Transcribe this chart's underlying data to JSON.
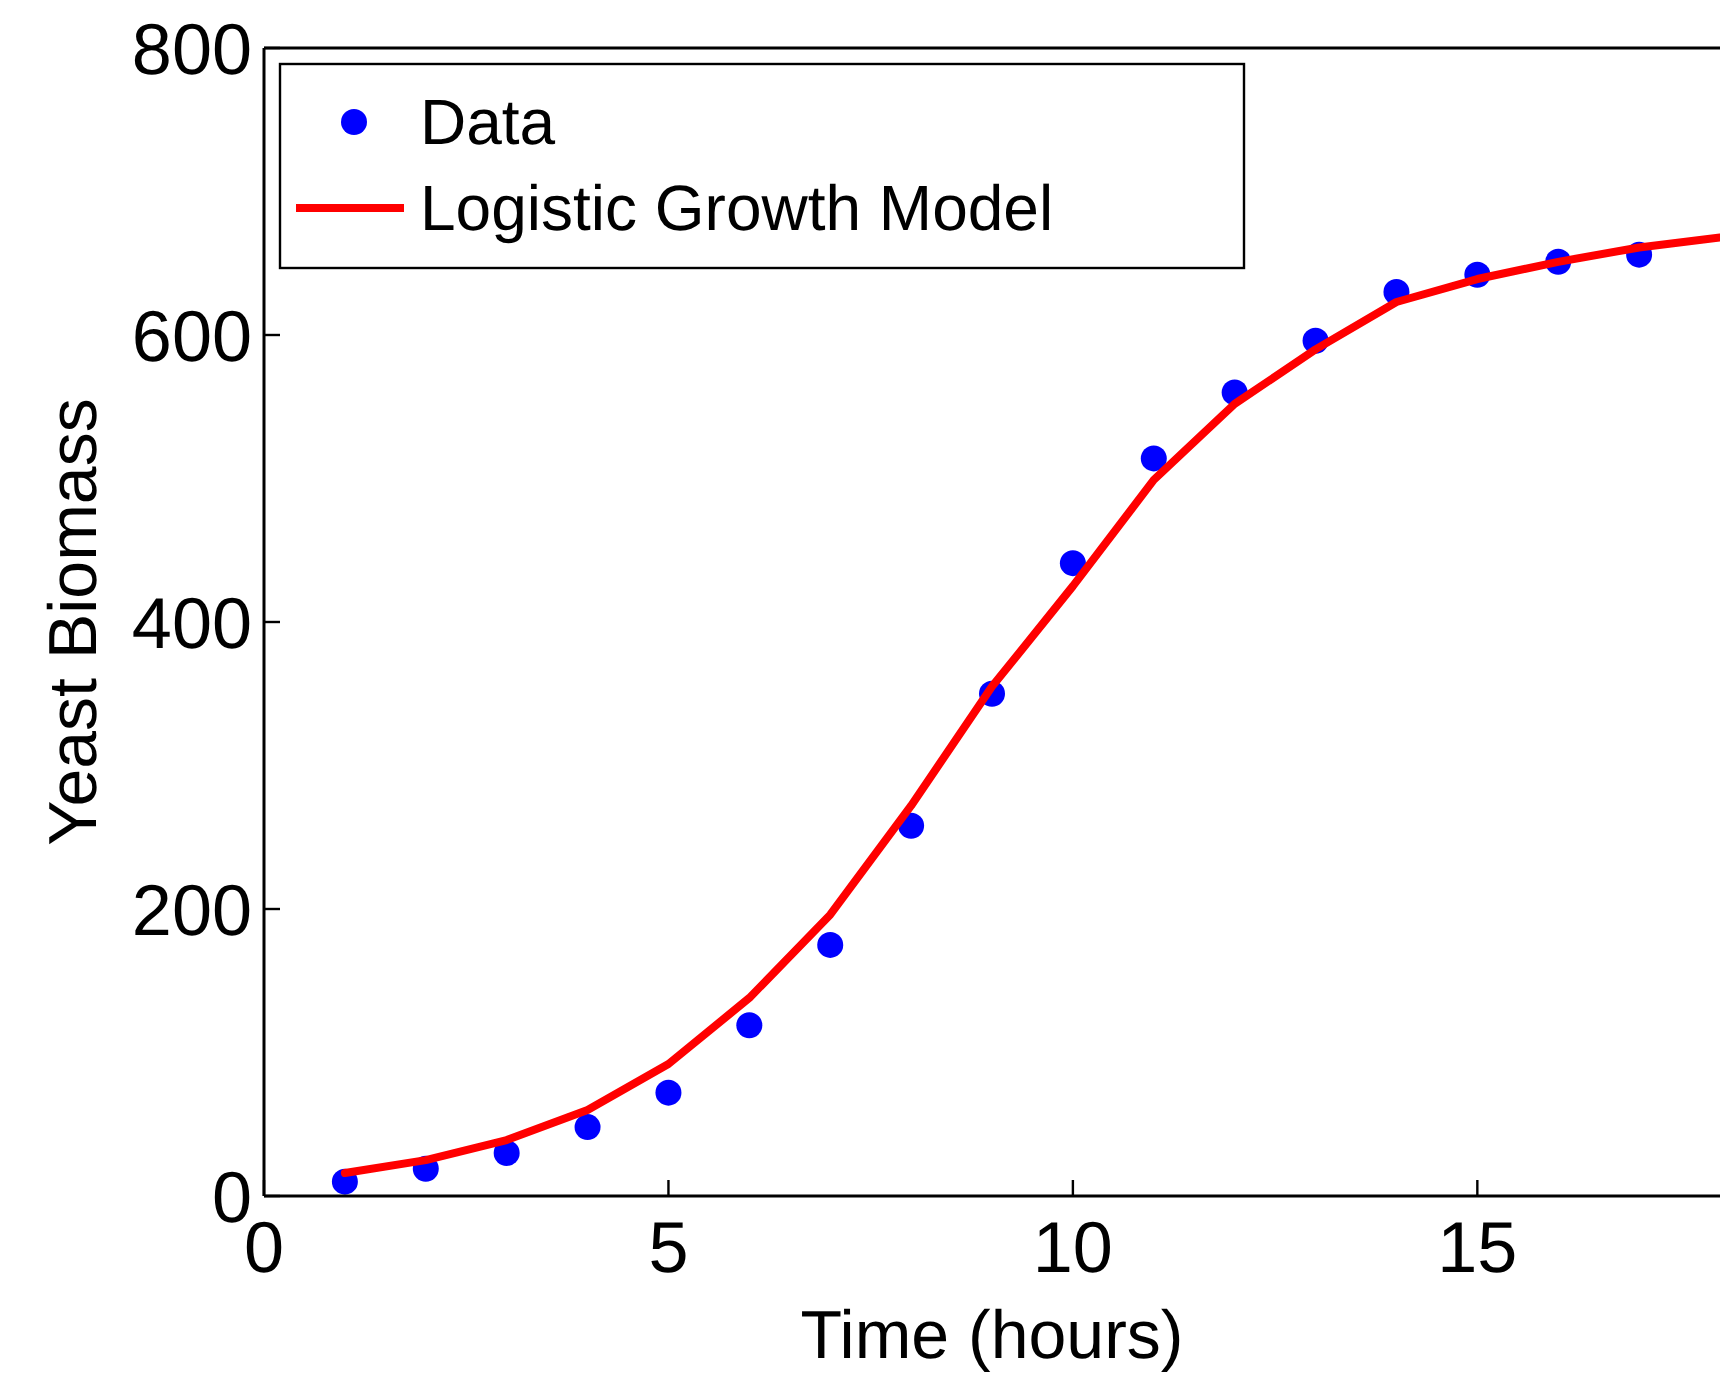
{
  "chart_data": {
    "type": "scatter",
    "xlabel": "Time (hours)",
    "ylabel": "Yeast Biomass",
    "xlim": [
      0,
      18
    ],
    "xticks": [
      0,
      5,
      10,
      15
    ],
    "ylim": [
      0,
      800
    ],
    "yticks": [
      0,
      200,
      400,
      600,
      800
    ],
    "grid": false,
    "legend": "top left",
    "series": [
      {
        "name": "Data",
        "marker": "circle",
        "color": "#0000ff",
        "x": [
          1,
          2,
          3,
          4,
          5,
          6,
          7,
          8,
          9,
          10,
          11,
          12,
          13,
          14,
          15,
          16,
          17
        ],
        "values": [
          10,
          19,
          30,
          48,
          72,
          119,
          175,
          258,
          350,
          441,
          514,
          560,
          596,
          630,
          642,
          651,
          656
        ]
      },
      {
        "name": "Logistic Growth Model",
        "type": "line",
        "marker": "none",
        "line_style": "solid",
        "color": "#ff0000",
        "x": [
          1,
          2,
          3,
          4,
          5,
          6,
          7,
          8,
          9,
          10,
          11,
          12,
          13,
          14,
          15,
          16,
          17,
          18
        ],
        "values": [
          16,
          25,
          39,
          60,
          92,
          138,
          196,
          272,
          355,
          425,
          499,
          552,
          590,
          623,
          639,
          651,
          661,
          668
        ]
      }
    ]
  }
}
